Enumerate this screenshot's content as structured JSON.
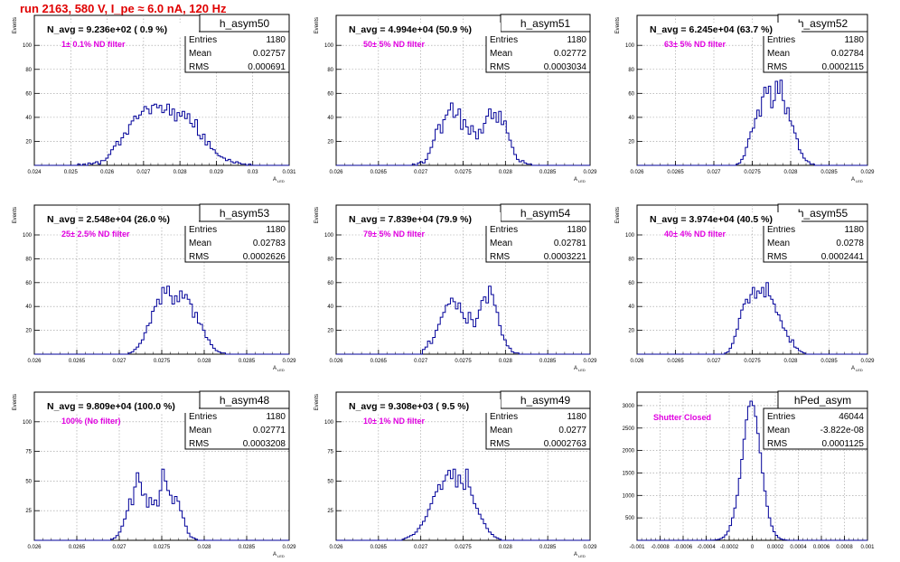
{
  "page": {
    "title": "run 2163,   580 V, I_pe ≈ 6.0 nA, 120 Hz"
  },
  "colors": {
    "histogram_line": "#000099",
    "grid": "#999999",
    "annotation": "#e000e0",
    "title_text": "#e00000",
    "axis": "#000000"
  },
  "chart_data": [
    {
      "type": "histogram",
      "name": "h_asym50",
      "entries": "1180",
      "mean": "0.02757",
      "rms": "0.000691",
      "navg_text": "N_avg = 9.236e+02 ( 0.9 %)",
      "annotation": "1± 0.1% ND filter",
      "ylabel": "Events",
      "xlabel": "A",
      "xlabel_sub": "LED",
      "xlim": [
        0.024,
        0.031
      ],
      "ylim": [
        0,
        125
      ],
      "xticks": [
        "0.024",
        "0.025",
        "0.026",
        "0.027",
        "0.028",
        "0.029",
        "0.03",
        "0.031"
      ],
      "yticks": [
        "20",
        "40",
        "60",
        "80",
        "100"
      ],
      "bin_values": [
        0,
        0,
        0,
        0,
        0,
        0,
        0,
        0,
        0,
        0,
        0,
        0,
        0,
        0,
        0,
        0,
        0,
        1,
        0,
        1,
        0,
        2,
        1,
        2,
        3,
        1,
        4,
        4,
        6,
        9,
        13,
        16,
        20,
        17,
        23,
        27,
        26,
        34,
        37,
        41,
        39,
        42,
        45,
        49,
        47,
        43,
        50,
        51,
        48,
        50,
        44,
        46,
        51,
        42,
        47,
        37,
        44,
        41,
        45,
        39,
        43,
        35,
        32,
        38,
        25,
        22,
        26,
        17,
        20,
        14,
        13,
        10,
        8,
        7,
        6,
        4,
        5,
        3,
        2,
        3,
        2,
        1,
        1,
        0,
        1,
        0,
        0,
        0,
        0,
        0,
        0,
        0,
        0,
        0,
        0,
        0,
        0,
        0,
        0,
        0
      ]
    },
    {
      "type": "histogram",
      "name": "h_asym51",
      "entries": "1180",
      "mean": "0.02772",
      "rms": "0.0003034",
      "navg_text": "N_avg = 4.994e+04 (50.9 %)",
      "annotation": "50± 5% ND filter",
      "ylabel": "Events",
      "xlabel": "A",
      "xlabel_sub": "LED",
      "xlim": [
        0.026,
        0.029
      ],
      "ylim": [
        0,
        125
      ],
      "xticks": [
        "0.026",
        "0.0265",
        "0.027",
        "0.0275",
        "0.028",
        "0.0285",
        "0.029"
      ],
      "yticks": [
        "20",
        "40",
        "60",
        "80",
        "100"
      ],
      "bin_values": [
        0,
        0,
        0,
        0,
        0,
        0,
        0,
        0,
        0,
        0,
        0,
        0,
        0,
        0,
        0,
        0,
        0,
        0,
        0,
        0,
        0,
        0,
        0,
        0,
        0,
        0,
        0,
        0,
        0,
        0,
        1,
        0,
        2,
        3,
        2,
        5,
        10,
        15,
        21,
        30,
        34,
        27,
        38,
        42,
        46,
        52,
        40,
        42,
        47,
        30,
        38,
        32,
        26,
        33,
        28,
        22,
        30,
        27,
        35,
        41,
        47,
        39,
        44,
        36,
        45,
        34,
        37,
        27,
        21,
        15,
        9,
        5,
        3,
        4,
        2,
        1,
        1,
        0,
        0,
        0,
        0,
        0,
        0,
        0,
        0,
        0,
        0,
        0,
        0,
        0,
        0,
        0,
        0,
        0,
        0,
        0,
        0,
        0,
        0,
        0
      ]
    },
    {
      "type": "histogram",
      "name": "h_asym52",
      "entries": "1180",
      "mean": "0.02784",
      "rms": "0.0002115",
      "navg_text": "N_avg = 6.245e+04 (63.7 %)",
      "annotation": "63± 5% ND filter",
      "ylabel": "Events",
      "xlabel": "A",
      "xlabel_sub": "LED",
      "xlim": [
        0.026,
        0.029
      ],
      "ylim": [
        0,
        125
      ],
      "xticks": [
        "0.026",
        "0.0265",
        "0.027",
        "0.0275",
        "0.028",
        "0.0285",
        "0.029"
      ],
      "yticks": [
        "20",
        "40",
        "60",
        "80",
        "100"
      ],
      "bin_values": [
        0,
        0,
        0,
        0,
        0,
        0,
        0,
        0,
        0,
        0,
        0,
        0,
        0,
        0,
        0,
        0,
        0,
        0,
        0,
        0,
        0,
        0,
        0,
        0,
        0,
        0,
        0,
        0,
        0,
        0,
        0,
        0,
        0,
        0,
        0,
        0,
        0,
        0,
        0,
        0,
        0,
        0,
        0,
        1,
        2,
        5,
        8,
        15,
        22,
        28,
        31,
        39,
        46,
        41,
        57,
        65,
        60,
        66,
        48,
        54,
        70,
        60,
        71,
        54,
        43,
        48,
        37,
        33,
        27,
        22,
        13,
        10,
        6,
        4,
        3,
        1,
        1,
        0,
        0,
        0,
        0,
        0,
        0,
        0,
        0,
        0,
        0,
        0,
        0,
        0,
        0,
        0,
        0,
        0,
        0,
        0,
        0,
        0,
        0,
        0
      ]
    },
    {
      "type": "histogram",
      "name": "h_asym53",
      "entries": "1180",
      "mean": "0.02783",
      "rms": "0.0002626",
      "navg_text": "N_avg = 2.548e+04 (26.0 %)",
      "annotation": "25± 2.5% ND filter",
      "ylabel": "Events",
      "xlabel": "A",
      "xlabel_sub": "LED",
      "xlim": [
        0.026,
        0.029
      ],
      "ylim": [
        0,
        125
      ],
      "xticks": [
        "0.026",
        "0.0265",
        "0.027",
        "0.0275",
        "0.028",
        "0.0285",
        "0.029"
      ],
      "yticks": [
        "20",
        "40",
        "60",
        "80",
        "100"
      ],
      "bin_values": [
        0,
        0,
        0,
        0,
        0,
        0,
        0,
        0,
        0,
        0,
        0,
        0,
        0,
        0,
        0,
        0,
        0,
        0,
        0,
        0,
        0,
        0,
        0,
        0,
        0,
        0,
        0,
        0,
        0,
        0,
        0,
        0,
        0,
        0,
        0,
        0,
        0,
        1,
        2,
        4,
        6,
        9,
        12,
        18,
        24,
        26,
        36,
        40,
        46,
        42,
        56,
        51,
        57,
        49,
        42,
        49,
        44,
        53,
        47,
        50,
        46,
        42,
        31,
        35,
        26,
        25,
        20,
        14,
        12,
        8,
        5,
        3,
        2,
        1,
        1,
        0,
        0,
        0,
        0,
        0,
        0,
        0,
        0,
        0,
        0,
        0,
        0,
        0,
        0,
        0,
        0,
        0,
        0,
        0,
        0,
        0,
        0,
        0,
        0,
        0
      ]
    },
    {
      "type": "histogram",
      "name": "h_asym54",
      "entries": "1180",
      "mean": "0.02781",
      "rms": "0.0003221",
      "navg_text": "N_avg = 7.839e+04 (79.9 %)",
      "annotation": "79± 5% ND filter",
      "ylabel": "Events",
      "xlabel": "A",
      "xlabel_sub": "LED",
      "xlim": [
        0.026,
        0.029
      ],
      "ylim": [
        0,
        125
      ],
      "xticks": [
        "0.026",
        "0.0265",
        "0.027",
        "0.0275",
        "0.028",
        "0.0285",
        "0.029"
      ],
      "yticks": [
        "20",
        "40",
        "60",
        "80",
        "100"
      ],
      "bin_values": [
        0,
        0,
        0,
        0,
        0,
        0,
        0,
        0,
        0,
        0,
        0,
        0,
        0,
        0,
        0,
        0,
        0,
        0,
        0,
        0,
        0,
        0,
        0,
        0,
        0,
        0,
        0,
        0,
        0,
        0,
        0,
        0,
        0,
        0,
        4,
        6,
        11,
        9,
        14,
        20,
        25,
        31,
        35,
        41,
        42,
        47,
        44,
        38,
        43,
        35,
        30,
        26,
        35,
        29,
        23,
        30,
        37,
        45,
        48,
        43,
        57,
        50,
        41,
        35,
        24,
        16,
        12,
        7,
        5,
        2,
        1,
        1,
        0,
        0,
        0,
        0,
        0,
        0,
        0,
        0,
        0,
        0,
        0,
        0,
        0,
        0,
        0,
        0,
        0,
        0,
        0,
        0,
        0,
        0,
        0,
        0,
        0,
        0,
        0,
        0
      ]
    },
    {
      "type": "histogram",
      "name": "h_asym55",
      "entries": "1180",
      "mean": "0.0278",
      "rms": "0.0002441",
      "navg_text": "N_avg = 3.974e+04 (40.5 %)",
      "annotation": "40± 4% ND filter",
      "ylabel": "Events",
      "xlabel": "A",
      "xlabel_sub": "LED",
      "xlim": [
        0.026,
        0.029
      ],
      "ylim": [
        0,
        125
      ],
      "xticks": [
        "0.026",
        "0.0265",
        "0.027",
        "0.0275",
        "0.028",
        "0.0285",
        "0.029"
      ],
      "yticks": [
        "20",
        "40",
        "60",
        "80",
        "100"
      ],
      "bin_values": [
        0,
        0,
        0,
        0,
        0,
        0,
        0,
        0,
        0,
        0,
        0,
        0,
        0,
        0,
        0,
        0,
        0,
        0,
        0,
        0,
        0,
        0,
        0,
        0,
        0,
        0,
        0,
        0,
        0,
        0,
        0,
        0,
        0,
        0,
        0,
        0,
        0,
        0,
        1,
        2,
        5,
        9,
        15,
        21,
        30,
        37,
        42,
        46,
        43,
        50,
        56,
        47,
        53,
        51,
        56,
        48,
        60,
        49,
        46,
        42,
        35,
        33,
        28,
        22,
        20,
        15,
        10,
        12,
        6,
        5,
        3,
        2,
        1,
        0,
        0,
        0,
        0,
        0,
        0,
        0,
        0,
        0,
        0,
        0,
        0,
        0,
        0,
        0,
        0,
        0,
        0,
        0,
        0,
        0,
        0,
        0,
        0,
        0,
        0,
        0
      ]
    },
    {
      "type": "histogram",
      "name": "h_asym48",
      "entries": "1180",
      "mean": "0.02771",
      "rms": "0.0003208",
      "navg_text": "N_avg = 9.809e+04 (100.0 %)",
      "annotation": "100% (No filter)",
      "ylabel": "Events",
      "xlabel": "A",
      "xlabel_sub": "LED",
      "xlim": [
        0.026,
        0.029
      ],
      "ylim": [
        0,
        125
      ],
      "xticks": [
        "0.026",
        "0.0265",
        "0.027",
        "0.0275",
        "0.028",
        "0.0285",
        "0.029"
      ],
      "yticks": [
        "25",
        "50",
        "75",
        "100"
      ],
      "bin_values": [
        0,
        0,
        0,
        0,
        0,
        0,
        0,
        0,
        0,
        0,
        0,
        0,
        0,
        0,
        0,
        0,
        0,
        0,
        0,
        0,
        0,
        0,
        0,
        0,
        0,
        0,
        0,
        0,
        0,
        0,
        1,
        2,
        4,
        7,
        12,
        18,
        25,
        35,
        30,
        45,
        57,
        49,
        38,
        39,
        28,
        36,
        30,
        34,
        29,
        42,
        60,
        50,
        42,
        38,
        31,
        37,
        33,
        25,
        19,
        12,
        6,
        3,
        2,
        1,
        0,
        0,
        0,
        0,
        0,
        0,
        0,
        0,
        0,
        0,
        0,
        0,
        0,
        0,
        0,
        0,
        0,
        0,
        0,
        0,
        0,
        0,
        0,
        0,
        0,
        0,
        0,
        0,
        0,
        0,
        0,
        0,
        0,
        0,
        0,
        0
      ]
    },
    {
      "type": "histogram",
      "name": "h_asym49",
      "entries": "1180",
      "mean": "0.0277",
      "rms": "0.0002763",
      "navg_text": "N_avg = 9.308e+03 ( 9.5 %)",
      "annotation": "10± 1% ND filter",
      "ylabel": "Events",
      "xlabel": "A",
      "xlabel_sub": "LED",
      "xlim": [
        0.026,
        0.029
      ],
      "ylim": [
        0,
        125
      ],
      "xticks": [
        "0.026",
        "0.0265",
        "0.027",
        "0.0275",
        "0.028",
        "0.0285",
        "0.029"
      ],
      "yticks": [
        "25",
        "50",
        "75",
        "100"
      ],
      "bin_values": [
        0,
        0,
        0,
        0,
        0,
        0,
        0,
        0,
        0,
        0,
        0,
        0,
        0,
        0,
        0,
        0,
        0,
        0,
        0,
        0,
        0,
        0,
        0,
        0,
        0,
        0,
        1,
        2,
        3,
        4,
        5,
        7,
        10,
        13,
        16,
        20,
        26,
        31,
        37,
        41,
        47,
        43,
        50,
        55,
        59,
        52,
        60,
        45,
        55,
        48,
        43,
        60,
        45,
        38,
        31,
        27,
        22,
        18,
        14,
        10,
        7,
        5,
        3,
        2,
        1,
        0,
        0,
        0,
        0,
        0,
        0,
        0,
        0,
        0,
        0,
        0,
        0,
        0,
        0,
        0,
        0,
        0,
        0,
        0,
        0,
        0,
        0,
        0,
        0,
        0,
        0,
        0,
        0,
        0,
        0,
        0,
        0,
        0,
        0,
        0
      ]
    },
    {
      "type": "histogram",
      "name": "hPed_asym",
      "entries": "46044",
      "mean": "-3.822e-08",
      "rms": "0.0001125",
      "navg_text": "",
      "annotation": "Shutter Closed",
      "ylabel": "",
      "xlabel": "",
      "xlabel_sub": "",
      "xlim": [
        -0.001,
        0.001
      ],
      "ylim": [
        0,
        3300
      ],
      "xticks": [
        "-0.001",
        "-0.0008",
        "-0.0006",
        "-0.0004",
        "-0.0002",
        "0",
        "0.0002",
        "0.0004",
        "0.0006",
        "0.0008",
        "0.001"
      ],
      "yticks": [
        "500",
        "1000",
        "1500",
        "2000",
        "2500",
        "3000"
      ],
      "bin_values": [
        0,
        0,
        0,
        0,
        0,
        0,
        0,
        0,
        0,
        0,
        0,
        0,
        0,
        0,
        0,
        0,
        0,
        0,
        0,
        0,
        0,
        0,
        0,
        0,
        0,
        0,
        0,
        0,
        0,
        0,
        0,
        1,
        3,
        6,
        12,
        22,
        40,
        70,
        120,
        200,
        330,
        500,
        720,
        1000,
        1380,
        1800,
        2250,
        2680,
        2980,
        3100,
        3000,
        2760,
        2380,
        1950,
        1500,
        1100,
        760,
        500,
        320,
        190,
        110,
        60,
        30,
        15,
        8,
        3,
        1,
        0,
        0,
        0,
        0,
        0,
        0,
        0,
        0,
        0,
        0,
        0,
        0,
        0,
        0,
        0,
        0,
        0,
        0,
        0,
        0,
        0,
        0,
        0,
        0,
        0,
        0,
        0,
        0,
        0,
        0,
        0,
        0,
        0
      ]
    }
  ]
}
